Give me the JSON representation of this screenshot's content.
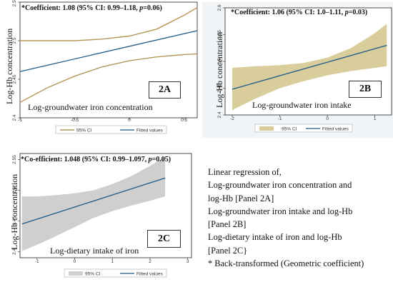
{
  "chart_data": [
    {
      "type": "line",
      "panel": "2A",
      "title": "*Coefficient: 1.08 (95% CI: 0.99–1.18, p=0.06)",
      "title_prefix": "*Coefficient: 1.08 (95% CI: 0.99–1.18, ",
      "title_p": "p",
      "title_suffix": "=0.06)",
      "xlabel": "Log-groundwater iron concentration",
      "ylabel": "Log-Hb concentration",
      "xlim": [
        -1,
        0.62
      ],
      "ylim": [
        2.4,
        2.55
      ],
      "xticks": [
        "-1",
        "-0.5",
        "0",
        "0.5"
      ],
      "xtick_values": [
        -1,
        -0.5,
        0,
        0.5
      ],
      "yticks": [
        "2.4",
        "2.45",
        "2.5",
        "2.55"
      ],
      "ytick_values": [
        2.4,
        2.45,
        2.5,
        2.55
      ],
      "ci_style": "lines",
      "ci_color": "#b5975a",
      "fit_color": "#1f5a87",
      "series": [
        {
          "name": "95% CI",
          "x": [
            -1,
            -0.75,
            -0.5,
            -0.25,
            0,
            0.25,
            0.5,
            0.62
          ],
          "upper": [
            2.5,
            2.5,
            2.5,
            2.502,
            2.506,
            2.515,
            2.533,
            2.543
          ],
          "lower": [
            2.42,
            2.439,
            2.454,
            2.466,
            2.474,
            2.479,
            2.482,
            2.483
          ]
        },
        {
          "name": "Fitted values",
          "x": [
            -1,
            0.62
          ],
          "y": [
            2.46,
            2.513
          ]
        }
      ],
      "legend": [
        "95% CI",
        "Fitted values"
      ]
    },
    {
      "type": "area",
      "panel": "2B",
      "title": "*Coefficient: 1.06 (95% CI: 1.0–1.11, p=0.03)",
      "title_prefix": "*Coefficient: 1.06 (95% CI: 1.0–1.11, ",
      "title_p": "p",
      "title_suffix": "=0.03)",
      "xlabel": "Log-groundwater iron intake",
      "ylabel": "Log-Hb concentration",
      "xlim": [
        -2.15,
        1.35
      ],
      "ylim": [
        2.4,
        2.6
      ],
      "xticks": [
        "-2",
        "-1",
        "0",
        "1"
      ],
      "xtick_values": [
        -2,
        -1,
        0,
        1
      ],
      "yticks": [
        "2.4",
        "2.45",
        "2.5",
        "2.55",
        "2.6"
      ],
      "ytick_values": [
        2.4,
        2.45,
        2.5,
        2.55,
        2.6
      ],
      "ci_style": "band",
      "ci_color": "#d9cd9b",
      "fit_color": "#1f5a87",
      "series": [
        {
          "name": "95% CI",
          "x": [
            -2,
            -1.5,
            -1,
            -0.5,
            0,
            0.5,
            1,
            1.25
          ],
          "upper": [
            2.488,
            2.491,
            2.493,
            2.497,
            2.507,
            2.525,
            2.553,
            2.57
          ],
          "lower": [
            2.409,
            2.431,
            2.45,
            2.463,
            2.474,
            2.482,
            2.488,
            2.491
          ]
        },
        {
          "name": "Fitted values",
          "x": [
            -2,
            1.25
          ],
          "y": [
            2.448,
            2.53
          ]
        }
      ],
      "legend": [
        "95% CI",
        "Fitted values"
      ]
    },
    {
      "type": "area",
      "panel": "2C",
      "title": "*Co-efficient: 1.048 (95% CI: 0.99–1.097, p=0.05)",
      "title_prefix": "*Co-efficient: 1.048 (95% CI: 0.99–1.097, ",
      "title_p": "p",
      "title_suffix": "=0.05)",
      "xlabel": "Log-dietary intake of iron",
      "ylabel": "Log-Hb concentration",
      "xlim": [
        -1.45,
        3.1
      ],
      "ylim": [
        2.39,
        2.56
      ],
      "xticks": [
        "-1",
        "0",
        "1",
        "2",
        "3"
      ],
      "xtick_values": [
        -1,
        0,
        1,
        2,
        3
      ],
      "yticks": [
        "2.4",
        "2.45",
        "2.5",
        "2.55"
      ],
      "ytick_values": [
        2.4,
        2.45,
        2.5,
        2.55
      ],
      "ci_style": "band",
      "ci_color": "#cfcfcf",
      "fit_color": "#1f5a87",
      "series": [
        {
          "name": "95% CI",
          "x": [
            -1.4,
            -1,
            -0.5,
            0,
            0.5,
            1,
            1.5,
            2,
            2.4
          ],
          "upper": [
            2.49,
            2.49,
            2.492,
            2.495,
            2.5,
            2.51,
            2.523,
            2.54,
            2.555
          ],
          "lower": [
            2.401,
            2.411,
            2.425,
            2.44,
            2.455,
            2.466,
            2.475,
            2.483,
            2.49
          ]
        },
        {
          "name": "Fitted values",
          "x": [
            -1.4,
            2.4
          ],
          "y": [
            2.445,
            2.52
          ]
        }
      ],
      "legend": [
        "95% CI",
        "Fitted values"
      ]
    }
  ],
  "panel_tags": [
    "2A",
    "2B",
    "2C"
  ],
  "notes": [
    "Linear regression of,",
    "Log-groundwater iron concentration and",
    "log-Hb [Panel 2A]",
    "Log-groundwater iron intake and log-Hb",
    "[Panel 2B]",
    "Log-dietary intake of iron and log-Hb",
    "[Panel 2C}",
    "* Back-transformed (Geometric coefficient)"
  ]
}
